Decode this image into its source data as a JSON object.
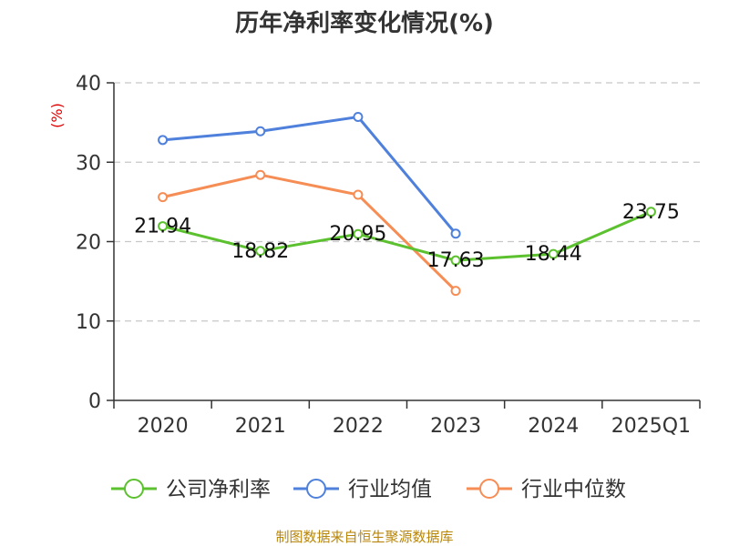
{
  "chart_data": {
    "type": "line",
    "title": "历年净利率变化情况(%)",
    "ylabel": "(%)",
    "xlabel": "",
    "categories": [
      "2020",
      "2021",
      "2022",
      "2023",
      "2024",
      "2025Q1"
    ],
    "ylim": [
      0,
      40
    ],
    "yticks": [
      0,
      10,
      20,
      30,
      40
    ],
    "grid": true,
    "legend_position": "bottom",
    "series": [
      {
        "name": "公司净利率",
        "color": "#5cc12e",
        "values": [
          21.94,
          18.82,
          20.95,
          17.63,
          18.44,
          23.75
        ],
        "show_labels": true
      },
      {
        "name": "行业均值",
        "color": "#4e80dc",
        "values": [
          32.8,
          33.9,
          35.7,
          21.0,
          null,
          null
        ],
        "show_labels": false
      },
      {
        "name": "行业中位数",
        "color": "#f68d55",
        "values": [
          25.6,
          28.4,
          25.9,
          13.8,
          null,
          null
        ],
        "show_labels": false
      }
    ],
    "source": "制图数据来自恒生聚源数据库"
  }
}
